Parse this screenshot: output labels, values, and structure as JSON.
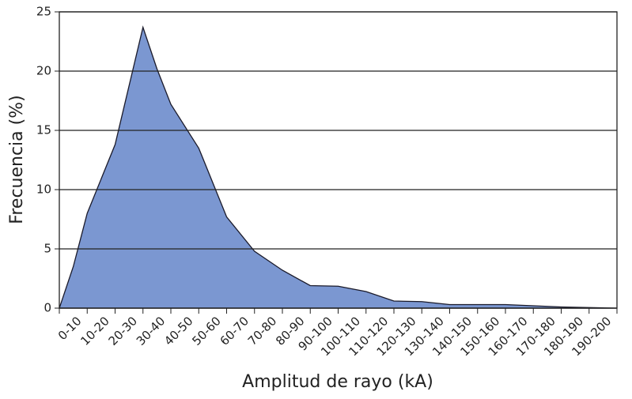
{
  "chart_data": {
    "type": "area",
    "x_label": "Amplitud de rayo (kA)",
    "y_label": "Frecuencia (%)",
    "categories": [
      "0-10",
      "10-20",
      "20-30",
      "30-40",
      "40-50",
      "50-60",
      "60-70",
      "70-80",
      "80-90",
      "90-100",
      "100-110",
      "110-120",
      "120-130",
      "130-140",
      "140-150",
      "150-160",
      "160-170",
      "170-180",
      "180-190",
      "190-200"
    ],
    "x": [
      0,
      5,
      10,
      20,
      30,
      35,
      40,
      50,
      60,
      70,
      80,
      90,
      100,
      110,
      120,
      130,
      140,
      150,
      160,
      170,
      180,
      190,
      200
    ],
    "values": [
      0,
      3.5,
      8,
      13.8,
      23.7,
      20.2,
      17.2,
      13.5,
      7.7,
      4.8,
      3.2,
      1.9,
      1.85,
      1.4,
      0.6,
      0.55,
      0.3,
      0.3,
      0.3,
      0.2,
      0.1,
      0.05,
      0
    ],
    "xlim": [
      0,
      200
    ],
    "ylim": [
      0,
      25
    ],
    "yticks": [
      0,
      5,
      10,
      15,
      20,
      25
    ],
    "color": "#7b97d1",
    "grid": true
  }
}
